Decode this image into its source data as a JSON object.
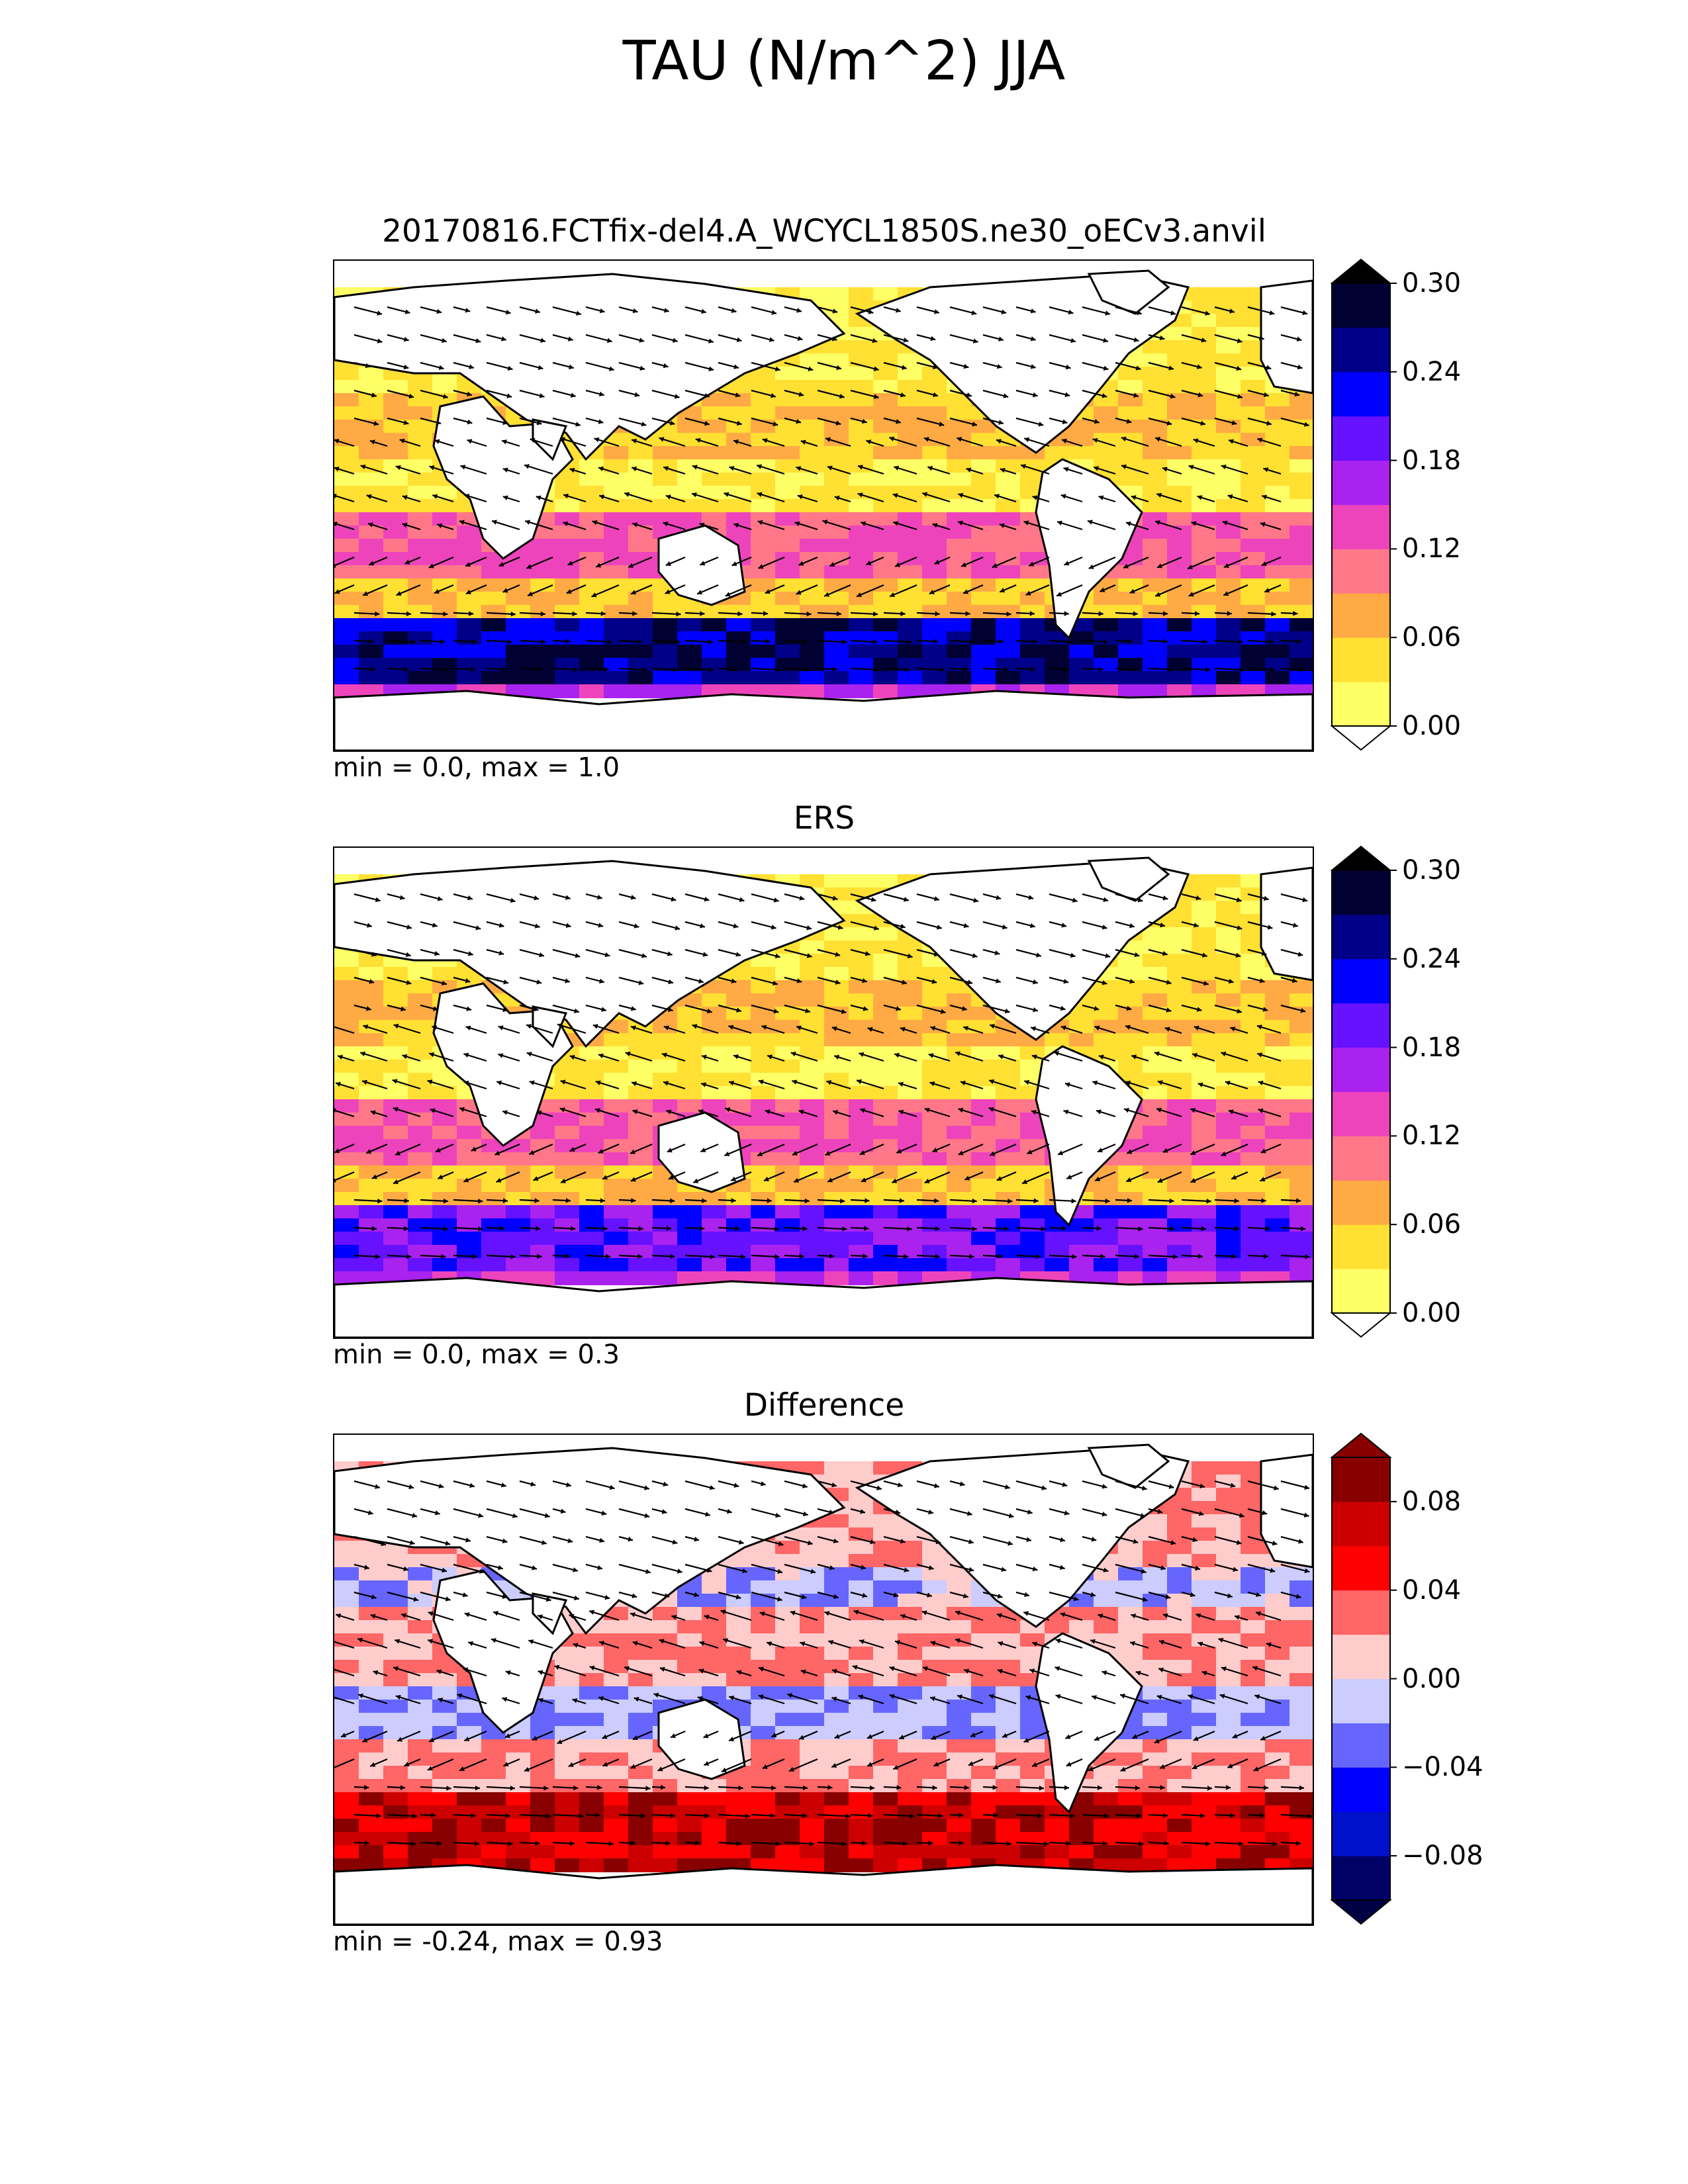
{
  "figure": {
    "title": "TAU (N/m^2) JJA"
  },
  "panels": [
    {
      "id": "model",
      "title": "20170816.FCTfix-del4.A_WCYCL1850S.ne30_oECv3.anvil",
      "stats": "min = 0.0, max = 1.0",
      "colorbar": {
        "ticks": [
          "0.00",
          "0.06",
          "0.12",
          "0.18",
          "0.24",
          "0.30"
        ],
        "extend": "both",
        "colors": [
          "#ffff66",
          "#ffe033",
          "#ffaa44",
          "#ff7788",
          "#ee44bb",
          "#aa22ee",
          "#6611ff",
          "#0000ff",
          "#000088",
          "#000033"
        ],
        "under": "#ffffff",
        "over": "#000000"
      }
    },
    {
      "id": "obs",
      "title": "ERS",
      "stats": "min = 0.0, max = 0.3",
      "colorbar": {
        "ticks": [
          "0.00",
          "0.06",
          "0.12",
          "0.18",
          "0.24",
          "0.30"
        ],
        "extend": "both",
        "colors": [
          "#ffff66",
          "#ffe033",
          "#ffaa44",
          "#ff7788",
          "#ee44bb",
          "#aa22ee",
          "#6611ff",
          "#0000ff",
          "#000088",
          "#000033"
        ],
        "under": "#ffffff",
        "over": "#000000"
      }
    },
    {
      "id": "diff",
      "title": "Difference",
      "stats": "min = -0.24, max = 0.93",
      "colorbar": {
        "ticks": [
          "−0.08",
          "−0.04",
          "0.00",
          "0.04",
          "0.08"
        ],
        "extend": "both",
        "colors": [
          "#000066",
          "#0011cc",
          "#0000ff",
          "#6666ff",
          "#ccccff",
          "#ffcccc",
          "#ff6666",
          "#ff0000",
          "#cc0000",
          "#880000"
        ],
        "under": "#000044",
        "over": "#880000"
      }
    }
  ]
}
